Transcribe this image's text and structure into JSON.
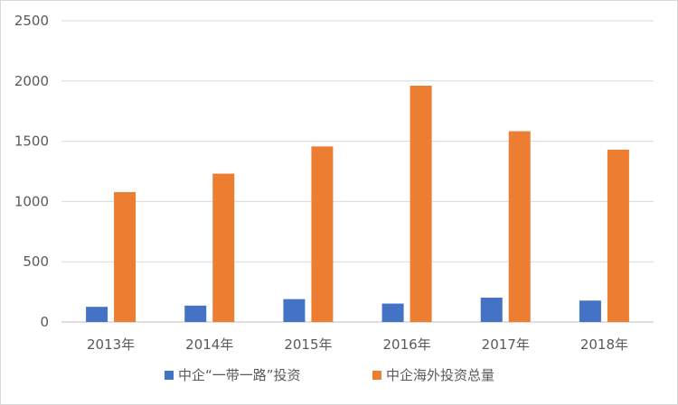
{
  "chart_data": {
    "type": "bar",
    "categories": [
      "2013年",
      "2014年",
      "2015年",
      "2016年",
      "2017年",
      "2018年"
    ],
    "series": [
      {
        "name": "中企“一带一路”投资",
        "color": "#4472C4",
        "values": [
          126,
          136,
          190,
          153,
          202,
          178
        ]
      },
      {
        "name": "中企海外投资总量",
        "color": "#ED7D31",
        "values": [
          1078,
          1231,
          1457,
          1961,
          1583,
          1430
        ]
      }
    ],
    "title": "",
    "xlabel": "",
    "ylabel": "",
    "ylim": [
      0,
      2500
    ],
    "yticks": [
      0,
      500,
      1000,
      1500,
      2000,
      2500
    ],
    "grid": true,
    "legend_position": "bottom"
  }
}
